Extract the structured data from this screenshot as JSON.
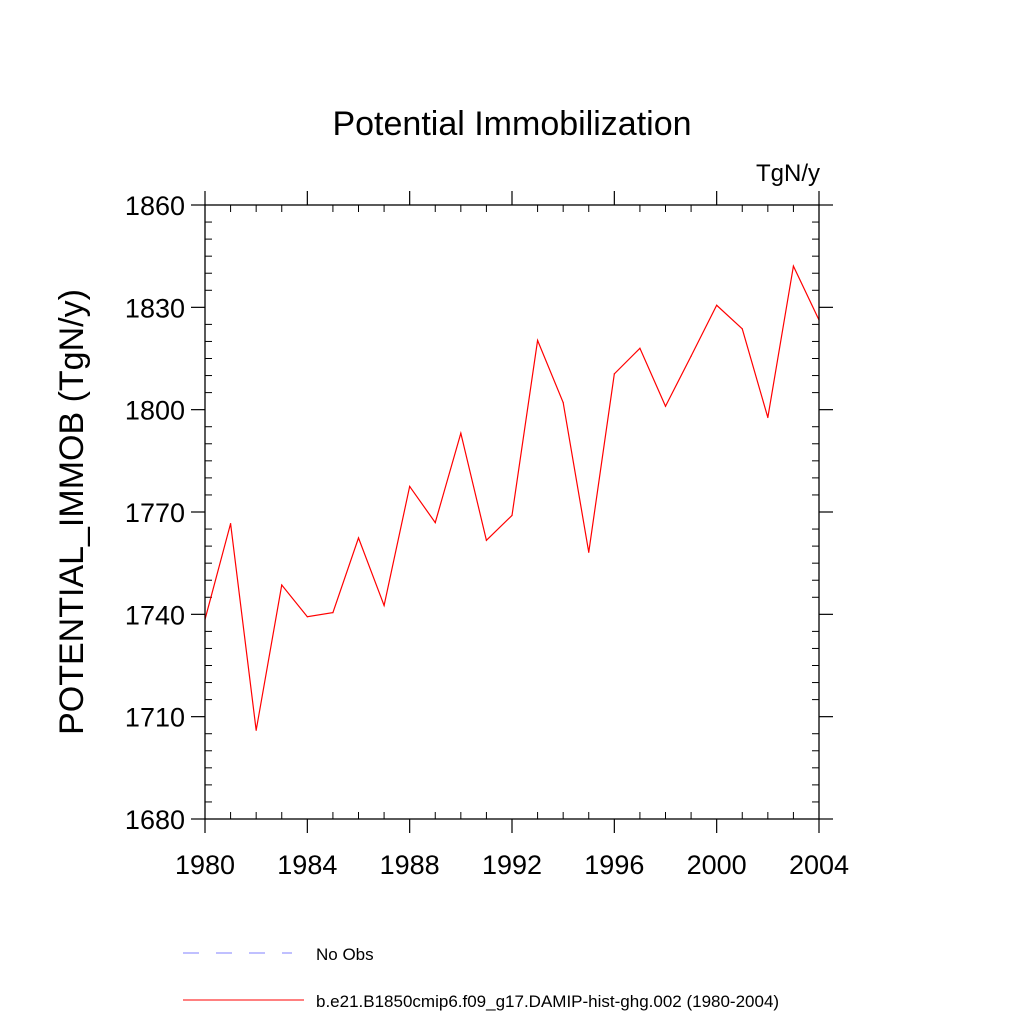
{
  "chart_data": {
    "type": "line",
    "title": "Potential Immobilization",
    "units_label": "TgN/y",
    "ylabel": "POTENTIAL_IMMOB  (TgN/y)",
    "xlabel": "",
    "xlim": [
      1980,
      2004
    ],
    "ylim": [
      1680,
      1860
    ],
    "x_ticks": [
      1980,
      1984,
      1988,
      1992,
      1996,
      2000,
      2004
    ],
    "y_ticks": [
      1680,
      1710,
      1740,
      1770,
      1800,
      1830,
      1860
    ],
    "x_minor_step": 1,
    "y_minor_step": 5,
    "grid": false,
    "legend_position": "bottom",
    "x": [
      1980,
      1981,
      1982,
      1983,
      1984,
      1985,
      1986,
      1987,
      1988,
      1989,
      1990,
      1991,
      1992,
      1993,
      1994,
      1995,
      1996,
      1997,
      1998,
      1999,
      2000,
      2001,
      2002,
      2003,
      2004
    ],
    "series": [
      {
        "name": "b.e21.B1850cmip6.f09_g17.DAMIP-hist-ghg.002 (1980-2004)",
        "color": "#ff0000",
        "style": "solid",
        "values": [
          1738.5,
          1766.6,
          1706,
          1748.6,
          1739.3,
          1740.5,
          1762.4,
          1742.6,
          1777.5,
          1766.9,
          1793.1,
          1761.7,
          1769,
          1820.3,
          1802.1,
          1758.2,
          1810.5,
          1818,
          1801,
          1815.7,
          1830.6,
          1823.7,
          1797.7,
          1842.1,
          1826.3
        ]
      }
    ],
    "legend": [
      {
        "label": "No Obs",
        "color": "#8080ff",
        "style": "dashed"
      },
      {
        "label": "b.e21.B1850cmip6.f09_g17.DAMIP-hist-ghg.002 (1980-2004)",
        "color": "#ff0000",
        "style": "solid"
      }
    ]
  }
}
